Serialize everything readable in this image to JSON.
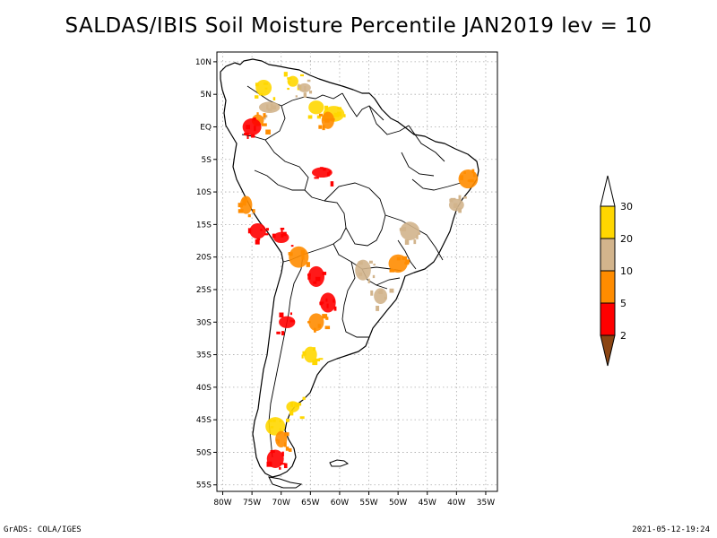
{
  "title": "SALDAS/IBIS Soil Moisture Percentile JAN2019 lev = 10",
  "footer": {
    "left": "GrADS: COLA/IGES",
    "right": "2021-05-12-19:24"
  },
  "axes": {
    "lat_labels": [
      "10N",
      "5N",
      "EQ",
      "5S",
      "10S",
      "15S",
      "20S",
      "25S",
      "30S",
      "35S",
      "40S",
      "45S",
      "50S",
      "55S"
    ],
    "lat_values": [
      10,
      5,
      0,
      -5,
      -10,
      -15,
      -20,
      -25,
      -30,
      -35,
      -40,
      -45,
      -50,
      -55
    ],
    "lon_labels": [
      "80W",
      "75W",
      "70W",
      "65W",
      "60W",
      "55W",
      "50W",
      "45W",
      "40W",
      "35W"
    ],
    "lon_values": [
      -80,
      -75,
      -70,
      -65,
      -60,
      -55,
      -50,
      -45,
      -40,
      -35
    ],
    "lon_range": [
      -81,
      -33
    ],
    "lat_range": [
      11.5,
      -56
    ],
    "grid": true
  },
  "colorbar": {
    "levels": [
      "2",
      "5",
      "10",
      "20",
      "30"
    ],
    "colors": [
      "#8b4513",
      "#ff0000",
      "#ff8c00",
      "#d2b48c",
      "#ffd700",
      "#ffffff"
    ]
  },
  "chart_data": {
    "type": "heatmap",
    "title": "SALDAS/IBIS Soil Moisture Percentile JAN2019 lev = 10",
    "xlabel": "",
    "ylabel": "",
    "x_range": [
      -81,
      -33
    ],
    "y_range": [
      -56,
      11.5
    ],
    "legend_placement": "right",
    "categories": [
      "<2",
      "2-5",
      "5-10",
      "10-20",
      "20-30",
      ">30"
    ],
    "colors": [
      "#8b4513",
      "#ff0000",
      "#ff8c00",
      "#d2b48c",
      "#ffd700",
      "#ffffff"
    ],
    "patches": [
      {
        "lon": -73,
        "lat": 6,
        "class": "20-30"
      },
      {
        "lon": -72,
        "lat": 3,
        "class": "10-20"
      },
      {
        "lon": -74,
        "lat": 1,
        "class": "5-10"
      },
      {
        "lon": -75,
        "lat": 0,
        "class": "2-5"
      },
      {
        "lon": -68,
        "lat": 7,
        "class": "20-30"
      },
      {
        "lon": -66,
        "lat": 6,
        "class": "10-20"
      },
      {
        "lon": -64,
        "lat": 3,
        "class": "20-30"
      },
      {
        "lon": -61,
        "lat": 2,
        "class": "20-30"
      },
      {
        "lon": -62,
        "lat": 1,
        "class": "5-10"
      },
      {
        "lon": -63,
        "lat": -7,
        "class": "2-5"
      },
      {
        "lon": -76,
        "lat": -12,
        "class": "5-10"
      },
      {
        "lon": -74,
        "lat": -16,
        "class": "2-5"
      },
      {
        "lon": -70,
        "lat": -17,
        "class": "2-5"
      },
      {
        "lon": -67,
        "lat": -20,
        "class": "5-10"
      },
      {
        "lon": -64,
        "lat": -23,
        "class": "2-5"
      },
      {
        "lon": -62,
        "lat": -27,
        "class": "2-5"
      },
      {
        "lon": -64,
        "lat": -30,
        "class": "5-10"
      },
      {
        "lon": -69,
        "lat": -30,
        "class": "2-5"
      },
      {
        "lon": -65,
        "lat": -35,
        "class": "20-30"
      },
      {
        "lon": -68,
        "lat": -43,
        "class": "20-30"
      },
      {
        "lon": -71,
        "lat": -46,
        "class": "20-30"
      },
      {
        "lon": -70,
        "lat": -48,
        "class": "5-10"
      },
      {
        "lon": -71,
        "lat": -51,
        "class": "2-5"
      },
      {
        "lon": -38,
        "lat": -8,
        "class": "5-10"
      },
      {
        "lon": -40,
        "lat": -12,
        "class": "10-20"
      },
      {
        "lon": -48,
        "lat": -16,
        "class": "10-20"
      },
      {
        "lon": -50,
        "lat": -21,
        "class": "5-10"
      },
      {
        "lon": -56,
        "lat": -22,
        "class": "10-20"
      },
      {
        "lon": -53,
        "lat": -26,
        "class": "10-20"
      }
    ]
  }
}
